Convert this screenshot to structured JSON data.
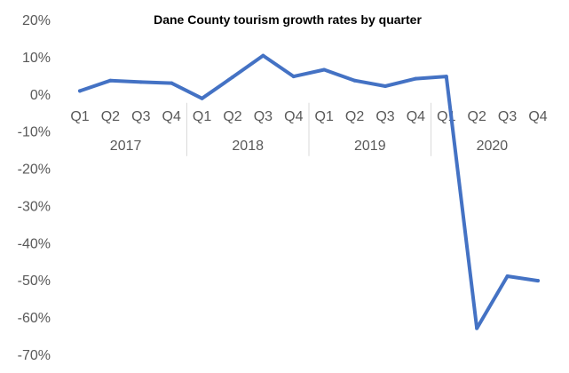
{
  "chart_data": {
    "type": "line",
    "title": "Dane County tourism growth rates by quarter",
    "xlabel": "",
    "ylabel": "",
    "grid": false,
    "legend": "none",
    "ylim": [
      -70,
      20
    ],
    "y_ticks": [
      20,
      10,
      0,
      -10,
      -20,
      -30,
      -40,
      -50,
      -60,
      -70
    ],
    "y_tick_labels": [
      "20%",
      "10%",
      "0%",
      "-10%",
      "-20%",
      "-30%",
      "-40%",
      "-50%",
      "-60%",
      "-70%"
    ],
    "categories": [
      "Q1",
      "Q2",
      "Q3",
      "Q4",
      "Q1",
      "Q2",
      "Q3",
      "Q4",
      "Q1",
      "Q2",
      "Q3",
      "Q4",
      "Q1",
      "Q2",
      "Q3",
      "Q4"
    ],
    "category_groups": [
      "2017",
      "2018",
      "2019",
      "2020"
    ],
    "series": [
      {
        "values": [
          0.8,
          3.6,
          3.2,
          2.9,
          -1.2,
          4.5,
          10.3,
          4.7,
          6.5,
          3.6,
          2.1,
          4.1,
          4.7,
          -63.0,
          -49.0,
          -50.2
        ],
        "color": "#4472C4"
      }
    ]
  }
}
